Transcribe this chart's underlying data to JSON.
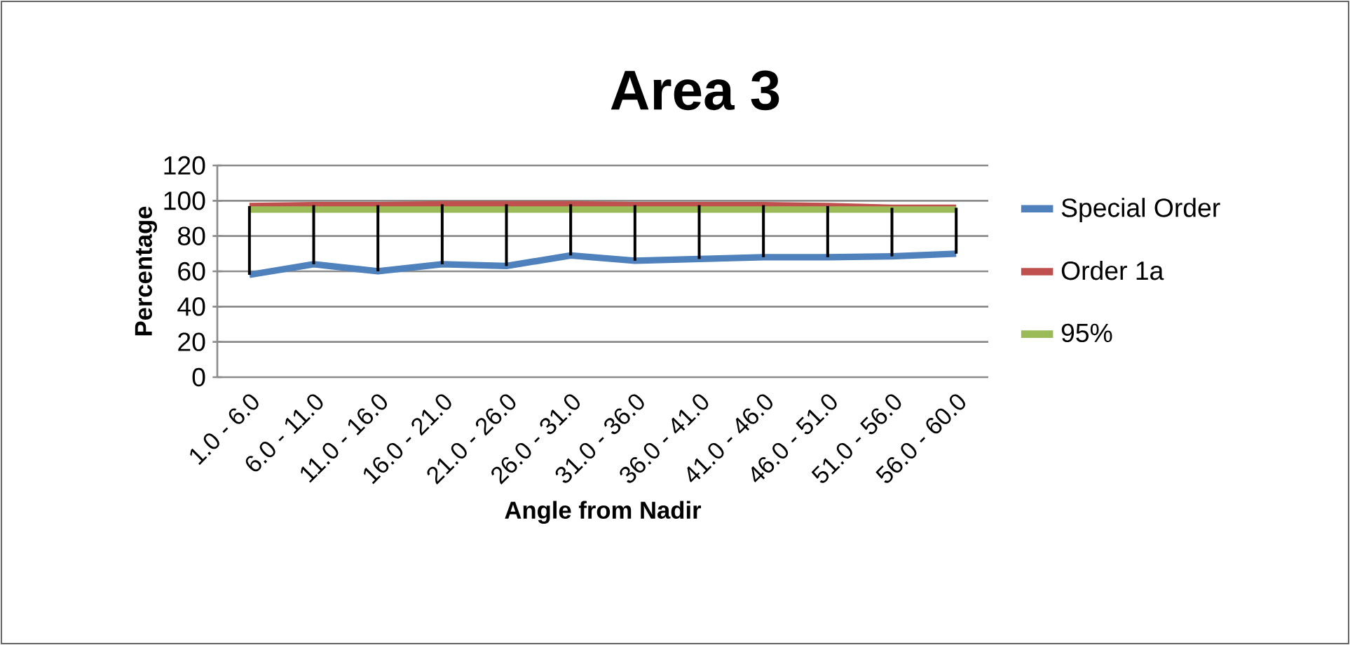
{
  "chart_data": {
    "type": "line",
    "title": "Area 3",
    "xlabel": "Angle from Nadir",
    "ylabel": "Percentage",
    "categories": [
      "1.0 - 6.0",
      "6.0 - 11.0",
      "11.0 - 16.0",
      "16.0 - 21.0",
      "21.0 - 26.0",
      "26.0 - 31.0",
      "31.0 - 36.0",
      "36.0 - 41.0",
      "41.0 - 46.0",
      "46.0 - 51.0",
      "51.0 - 56.0",
      "56.0 - 60.0"
    ],
    "series": [
      {
        "name": "Special Order",
        "color": "#4f81bd",
        "values": [
          58,
          64,
          60,
          64,
          63,
          69,
          66,
          67,
          68,
          68,
          68.5,
          70
        ],
        "errors": [
          [
            58,
            97
          ],
          [
            64,
            97.5
          ],
          [
            60,
            97.5
          ],
          [
            64,
            98
          ],
          [
            63,
            98
          ],
          [
            69,
            98
          ],
          [
            66,
            97.5
          ],
          [
            67,
            97.5
          ],
          [
            68,
            97.5
          ],
          [
            68,
            97
          ],
          [
            68.5,
            96
          ],
          [
            70,
            96
          ]
        ]
      },
      {
        "name": "Order 1a",
        "color": "#c0504d",
        "values": [
          97,
          97.5,
          97.5,
          98,
          98,
          98,
          97.5,
          97.5,
          97.5,
          97,
          96,
          96
        ]
      },
      {
        "name": "95%",
        "color": "#9bbb59",
        "values": [
          95,
          95,
          95,
          95,
          95,
          95,
          95,
          95,
          95,
          95,
          95,
          95
        ]
      }
    ],
    "ylim": [
      0,
      120
    ],
    "yticks": [
      0,
      20,
      40,
      60,
      80,
      100,
      120
    ],
    "grid": "y",
    "legend": "right",
    "marker": "none",
    "line_style": "solid"
  }
}
